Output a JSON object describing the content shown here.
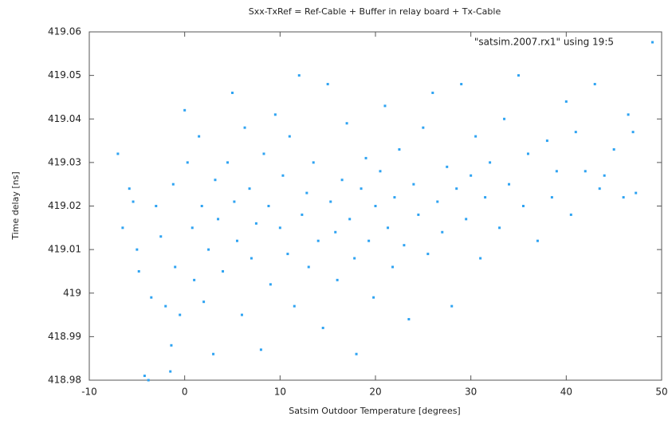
{
  "chart_data": {
    "type": "scatter",
    "title": "Sxx-TxRef = Ref-Cable + Buffer in relay board + Tx-Cable",
    "x_label": "Satsim Outdoor Temperature [degrees]",
    "y_label": "Time delay [ns]",
    "legend_position": "top-right",
    "series": [
      {
        "name": "\"satsim.2007.rx1\" using 19:5",
        "color": "#2ea3f2",
        "x": [
          -7,
          -6.5,
          -5.8,
          -5.4,
          -5,
          -4.8,
          -4.2,
          -3.8,
          -3.5,
          -3,
          -2.5,
          -2,
          -1.5,
          -1.4,
          -1.2,
          -1,
          -0.5,
          0,
          0.3,
          0.8,
          1,
          1.5,
          1.8,
          2,
          2.5,
          3,
          3.2,
          3.5,
          4,
          4.5,
          5,
          5.2,
          5.5,
          6,
          6.3,
          6.8,
          7,
          7.5,
          8,
          8.3,
          8.8,
          9,
          9.5,
          10,
          10.3,
          10.8,
          11,
          11.5,
          12,
          12.3,
          12.8,
          13,
          13.5,
          14,
          14.5,
          15,
          15.3,
          15.8,
          16,
          16.5,
          17,
          17.3,
          17.8,
          18,
          18.5,
          19,
          19.3,
          19.8,
          20,
          20.5,
          21,
          21.3,
          21.8,
          22,
          22.5,
          23,
          23.5,
          24,
          24.5,
          25,
          25.5,
          26,
          26.5,
          27,
          27.5,
          28,
          28.5,
          29,
          29.5,
          30,
          30.5,
          31,
          31.5,
          32,
          33,
          33.5,
          34,
          35,
          35.5,
          36,
          37,
          38,
          38.5,
          39,
          40,
          40.5,
          41,
          42,
          43,
          43.5,
          44,
          45,
          46,
          46.5,
          47,
          47.3
        ],
        "values": [
          419.032,
          419.015,
          419.024,
          419.021,
          419.01,
          419.005,
          418.981,
          418.98,
          418.999,
          419.02,
          419.013,
          418.997,
          418.982,
          418.988,
          419.025,
          419.006,
          418.995,
          419.042,
          419.03,
          419.015,
          419.003,
          419.036,
          419.02,
          418.998,
          419.01,
          418.986,
          419.026,
          419.017,
          419.005,
          419.03,
          419.046,
          419.021,
          419.012,
          418.995,
          419.038,
          419.024,
          419.008,
          419.016,
          418.987,
          419.032,
          419.02,
          419.002,
          419.041,
          419.015,
          419.027,
          419.009,
          419.036,
          418.997,
          419.05,
          419.018,
          419.023,
          419.006,
          419.03,
          419.012,
          418.992,
          419.048,
          419.021,
          419.014,
          419.003,
          419.026,
          419.039,
          419.017,
          419.008,
          418.986,
          419.024,
          419.031,
          419.012,
          418.999,
          419.02,
          419.028,
          419.043,
          419.015,
          419.006,
          419.022,
          419.033,
          419.011,
          418.994,
          419.025,
          419.018,
          419.038,
          419.009,
          419.046,
          419.021,
          419.014,
          419.029,
          418.997,
          419.024,
          419.048,
          419.017,
          419.027,
          419.036,
          419.008,
          419.022,
          419.03,
          419.015,
          419.04,
          419.025,
          419.05,
          419.02,
          419.032,
          419.012,
          419.035,
          419.022,
          419.028,
          419.044,
          419.018,
          419.037,
          419.028,
          419.048,
          419.024,
          419.027,
          419.033,
          419.022,
          419.041,
          419.037,
          419.023
        ]
      }
    ],
    "xlim": [
      -10,
      50
    ],
    "xticks": [
      -10,
      0,
      10,
      20,
      30,
      40,
      50
    ],
    "ylim": [
      418.98,
      419.06
    ],
    "yticks": [
      418.98,
      418.99,
      419,
      419.01,
      419.02,
      419.03,
      419.04,
      419.05,
      419.06
    ]
  }
}
